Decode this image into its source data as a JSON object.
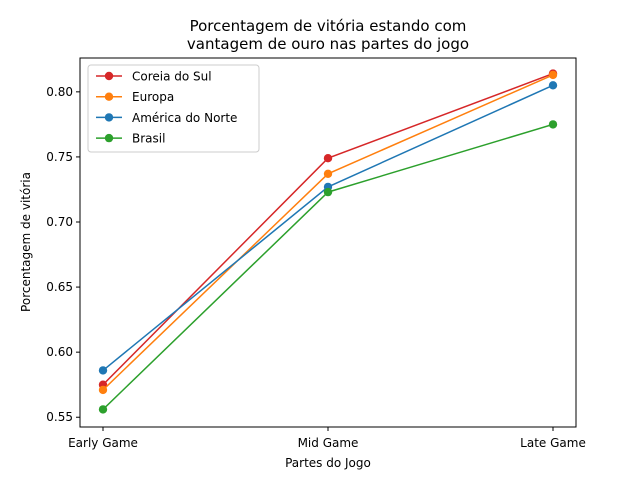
{
  "chart_data": {
    "type": "line",
    "title_lines": [
      "Porcentagem de vitória estando com",
      "vantagem de ouro nas partes do jogo"
    ],
    "xlabel": "Partes do Jogo",
    "ylabel": "Porcentagem de vitória",
    "categories": [
      "Early Game",
      "Mid Game",
      "Late Game"
    ],
    "ylim": [
      0.5425,
      0.826
    ],
    "yticks": [
      "0.55",
      "0.60",
      "0.65",
      "0.70",
      "0.75",
      "0.80"
    ],
    "legend_position": "top-left",
    "grid": false,
    "series": [
      {
        "name": "Coreia do Sul",
        "color": "#d62728",
        "values": [
          0.575,
          0.749,
          0.814
        ]
      },
      {
        "name": "Europa",
        "color": "#ff7f0e",
        "values": [
          0.571,
          0.737,
          0.813
        ]
      },
      {
        "name": "América do Norte",
        "color": "#1f77b4",
        "values": [
          0.586,
          0.727,
          0.805
        ]
      },
      {
        "name": "Brasil",
        "color": "#2ca02c",
        "values": [
          0.556,
          0.723,
          0.775
        ]
      }
    ]
  }
}
